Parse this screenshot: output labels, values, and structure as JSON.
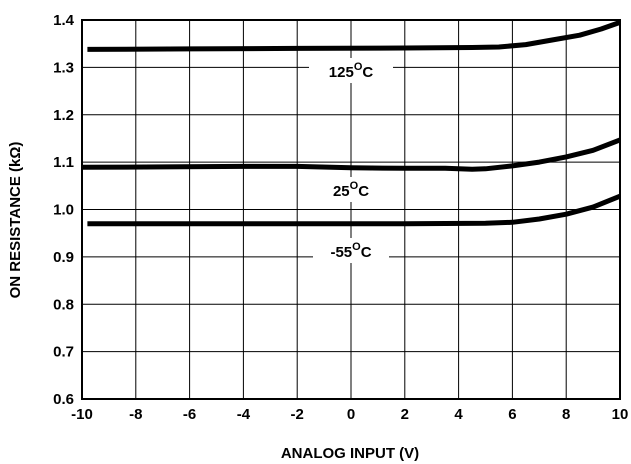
{
  "chart_data": {
    "type": "line",
    "xlabel": "ANALOG INPUT (V)",
    "ylabel": "ON RESISTANCE (kΩ)",
    "xlim": [
      -10,
      10
    ],
    "ylim": [
      0.6,
      1.4
    ],
    "x_ticks": [
      -10,
      -8,
      -6,
      -4,
      -2,
      0,
      2,
      4,
      6,
      8,
      10
    ],
    "y_ticks": [
      "0.6",
      "0.7",
      "0.8",
      "0.9",
      "1.0",
      "1.1",
      "1.2",
      "1.3",
      "1.4"
    ],
    "grid": true,
    "series": [
      {
        "name": "125°C",
        "label_main": "125",
        "label_sup": "O",
        "label_tail": "C",
        "points": [
          [
            -9.8,
            1.338
          ],
          [
            -6,
            1.339
          ],
          [
            -2,
            1.34
          ],
          [
            2,
            1.341
          ],
          [
            4.5,
            1.342
          ],
          [
            5.5,
            1.343
          ],
          [
            6.5,
            1.348
          ],
          [
            7.5,
            1.358
          ],
          [
            8.5,
            1.368
          ],
          [
            9.3,
            1.381
          ],
          [
            10,
            1.395
          ]
        ]
      },
      {
        "name": "25°C",
        "label_main": "25",
        "label_sup": "O",
        "label_tail": "C",
        "points": [
          [
            -10,
            1.089
          ],
          [
            -7,
            1.09
          ],
          [
            -4,
            1.091
          ],
          [
            -2,
            1.091
          ],
          [
            0,
            1.088
          ],
          [
            2,
            1.087
          ],
          [
            3.5,
            1.087
          ],
          [
            4.5,
            1.085
          ],
          [
            5,
            1.086
          ],
          [
            6,
            1.092
          ],
          [
            7,
            1.1
          ],
          [
            8,
            1.111
          ],
          [
            9,
            1.125
          ],
          [
            10,
            1.147
          ]
        ]
      },
      {
        "name": "-55°C",
        "label_main": "-55",
        "label_sup": "O",
        "label_tail": "C",
        "points": [
          [
            -9.8,
            0.97
          ],
          [
            -6,
            0.97
          ],
          [
            -2,
            0.97
          ],
          [
            2,
            0.97
          ],
          [
            5,
            0.971
          ],
          [
            6,
            0.973
          ],
          [
            7,
            0.98
          ],
          [
            8,
            0.99
          ],
          [
            9,
            1.005
          ],
          [
            10,
            1.028
          ]
        ]
      }
    ]
  }
}
